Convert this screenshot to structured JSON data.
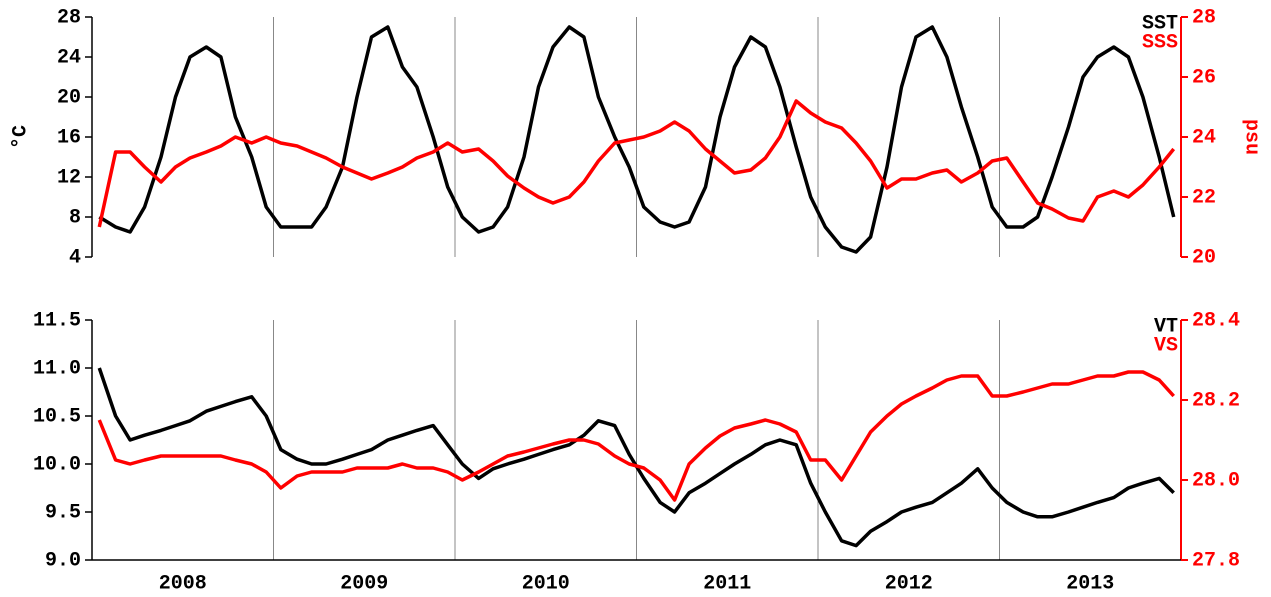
{
  "chart_data": [
    {
      "type": "line",
      "ylabel": "°C",
      "y2label": "psu",
      "legend": "upper right",
      "xlim": [
        2008,
        2014
      ],
      "xgrid": [
        2009,
        2010,
        2011,
        2012,
        2013
      ],
      "ylim": [
        4,
        28
      ],
      "yticks": [
        4,
        8,
        12,
        16,
        20,
        24,
        28
      ],
      "y2lim": [
        20,
        28
      ],
      "y2ticks": [
        20,
        22,
        24,
        26,
        28
      ],
      "x": [
        2008.04,
        2008.13,
        2008.21,
        2008.29,
        2008.38,
        2008.46,
        2008.54,
        2008.63,
        2008.71,
        2008.79,
        2008.88,
        2008.96,
        2009.04,
        2009.13,
        2009.21,
        2009.29,
        2009.38,
        2009.46,
        2009.54,
        2009.63,
        2009.71,
        2009.79,
        2009.88,
        2009.96,
        2010.04,
        2010.13,
        2010.21,
        2010.29,
        2010.38,
        2010.46,
        2010.54,
        2010.63,
        2010.71,
        2010.79,
        2010.88,
        2010.96,
        2011.04,
        2011.13,
        2011.21,
        2011.29,
        2011.38,
        2011.46,
        2011.54,
        2011.63,
        2011.71,
        2011.79,
        2011.88,
        2011.96,
        2012.04,
        2012.13,
        2012.21,
        2012.29,
        2012.38,
        2012.46,
        2012.54,
        2012.63,
        2012.71,
        2012.79,
        2012.88,
        2012.96,
        2013.04,
        2013.13,
        2013.21,
        2013.29,
        2013.38,
        2013.46,
        2013.54,
        2013.63,
        2013.71,
        2013.79,
        2013.88,
        2013.96
      ],
      "series": [
        {
          "name": "SST",
          "color": "#000000",
          "values": [
            8,
            7,
            6.5,
            9,
            14,
            20,
            24,
            25,
            24,
            18,
            14,
            9,
            7,
            7,
            7,
            9,
            13,
            20,
            26,
            27,
            23,
            21,
            16,
            11,
            8,
            6.5,
            7,
            9,
            14,
            21,
            25,
            27,
            26,
            20,
            16,
            13,
            9,
            7.5,
            7,
            7.5,
            11,
            18,
            23,
            26,
            25,
            21,
            15,
            10,
            7,
            5,
            4.5,
            6,
            13,
            21,
            26,
            27,
            24,
            19,
            14,
            9,
            7,
            7,
            8,
            12,
            17,
            22,
            24,
            25,
            24,
            20,
            14,
            8
          ]
        },
        {
          "name": "SSS",
          "color": "#ff0000",
          "axis": "y2",
          "values": [
            21,
            23.5,
            23.5,
            23,
            22.5,
            23,
            23.3,
            23.5,
            23.7,
            24,
            23.8,
            24,
            23.8,
            23.7,
            23.5,
            23.3,
            23,
            22.8,
            22.6,
            22.8,
            23,
            23.3,
            23.5,
            23.8,
            23.5,
            23.6,
            23.2,
            22.7,
            22.3,
            22,
            21.8,
            22,
            22.5,
            23.2,
            23.8,
            23.9,
            24,
            24.2,
            24.5,
            24.2,
            23.6,
            23.2,
            22.8,
            22.9,
            23.3,
            24,
            25.2,
            24.8,
            24.5,
            24.3,
            23.8,
            23.2,
            22.3,
            22.6,
            22.6,
            22.8,
            22.9,
            22.5,
            22.8,
            23.2,
            23.3,
            22.5,
            21.8,
            21.6,
            21.3,
            21.2,
            22,
            22.2,
            22,
            22.4,
            23,
            23.6
          ]
        }
      ]
    },
    {
      "type": "line",
      "legend": "upper right",
      "xlim": [
        2008,
        2014
      ],
      "xgrid": [
        2009,
        2010,
        2011,
        2012,
        2013
      ],
      "xticks": [
        {
          "value": 2008.5,
          "label": "2008"
        },
        {
          "value": 2009.5,
          "label": "2009"
        },
        {
          "value": 2010.5,
          "label": "2010"
        },
        {
          "value": 2011.5,
          "label": "2011"
        },
        {
          "value": 2012.5,
          "label": "2012"
        },
        {
          "value": 2013.5,
          "label": "2013"
        }
      ],
      "ylim": [
        9,
        11.5
      ],
      "yticks": [
        {
          "value": 9,
          "label": "9.0"
        },
        9.5,
        {
          "value": 10,
          "label": "10.0"
        },
        10.5,
        {
          "value": 11,
          "label": "11.0"
        },
        11.5
      ],
      "y2lim": [
        27.8,
        28.4
      ],
      "y2ticks": [
        27.8,
        {
          "value": 28,
          "label": "28.0"
        },
        28.2,
        28.4
      ],
      "x": [
        2008.04,
        2008.13,
        2008.21,
        2008.29,
        2008.38,
        2008.46,
        2008.54,
        2008.63,
        2008.71,
        2008.79,
        2008.88,
        2008.96,
        2009.04,
        2009.13,
        2009.21,
        2009.29,
        2009.38,
        2009.46,
        2009.54,
        2009.63,
        2009.71,
        2009.79,
        2009.88,
        2009.96,
        2010.04,
        2010.13,
        2010.21,
        2010.29,
        2010.38,
        2010.46,
        2010.54,
        2010.63,
        2010.71,
        2010.79,
        2010.88,
        2010.96,
        2011.04,
        2011.13,
        2011.21,
        2011.29,
        2011.38,
        2011.46,
        2011.54,
        2011.63,
        2011.71,
        2011.79,
        2011.88,
        2011.96,
        2012.04,
        2012.13,
        2012.21,
        2012.29,
        2012.38,
        2012.46,
        2012.54,
        2012.63,
        2012.71,
        2012.79,
        2012.88,
        2012.96,
        2013.04,
        2013.13,
        2013.21,
        2013.29,
        2013.38,
        2013.46,
        2013.54,
        2013.63,
        2013.71,
        2013.79,
        2013.88,
        2013.96
      ],
      "series": [
        {
          "name": "VT",
          "color": "#000000",
          "values": [
            11,
            10.5,
            10.25,
            10.3,
            10.35,
            10.4,
            10.45,
            10.55,
            10.6,
            10.65,
            10.7,
            10.5,
            10.15,
            10.05,
            10,
            10,
            10.05,
            10.1,
            10.15,
            10.25,
            10.3,
            10.35,
            10.4,
            10.2,
            10,
            9.85,
            9.95,
            10,
            10.05,
            10.1,
            10.15,
            10.2,
            10.3,
            10.45,
            10.4,
            10.1,
            9.85,
            9.6,
            9.5,
            9.7,
            9.8,
            9.9,
            10,
            10.1,
            10.2,
            10.25,
            10.2,
            9.8,
            9.5,
            9.2,
            9.15,
            9.3,
            9.4,
            9.5,
            9.55,
            9.6,
            9.7,
            9.8,
            9.95,
            9.75,
            9.6,
            9.5,
            9.45,
            9.45,
            9.5,
            9.55,
            9.6,
            9.65,
            9.75,
            9.8,
            9.85,
            9.7
          ]
        },
        {
          "name": "VS",
          "color": "#ff0000",
          "axis": "y2",
          "values": [
            28.15,
            28.05,
            28.04,
            28.05,
            28.06,
            28.06,
            28.06,
            28.06,
            28.06,
            28.05,
            28.04,
            28.02,
            27.98,
            28.01,
            28.02,
            28.02,
            28.02,
            28.03,
            28.03,
            28.03,
            28.04,
            28.03,
            28.03,
            28.02,
            28,
            28.02,
            28.04,
            28.06,
            28.07,
            28.08,
            28.09,
            28.1,
            28.1,
            28.09,
            28.06,
            28.04,
            28.03,
            28,
            27.95,
            28.04,
            28.08,
            28.11,
            28.13,
            28.14,
            28.15,
            28.14,
            28.12,
            28.05,
            28.05,
            28,
            28.06,
            28.12,
            28.16,
            28.19,
            28.21,
            28.23,
            28.25,
            28.26,
            28.26,
            28.21,
            28.21,
            28.22,
            28.23,
            28.24,
            28.24,
            28.25,
            28.26,
            28.26,
            28.27,
            28.27,
            28.25,
            28.21
          ]
        }
      ]
    }
  ]
}
